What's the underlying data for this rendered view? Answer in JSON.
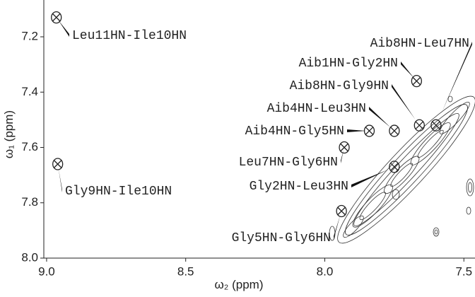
{
  "chart_data": {
    "type": "scatter",
    "xlabel": "ω₂ (ppm)",
    "ylabel": "ω₁ (ppm)",
    "x": [
      8.965,
      8.96,
      7.6,
      7.67,
      7.66,
      7.75,
      7.84,
      7.93,
      7.75,
      7.94
    ],
    "values": [
      7.13,
      7.66,
      7.52,
      7.36,
      7.52,
      7.54,
      7.54,
      7.6,
      7.67,
      7.83
    ],
    "labels": [
      "Leu11HN-Ile10HN",
      "Gly9HN-Ile10HN",
      "Aib8HN-Leu7HN",
      "Aib1HN-Gly2HN",
      "Aib8HN-Gly9HN",
      "Aib4HN-Leu3HN",
      "Aib4HN-Gly5HN",
      "Leu7HN-Gly6HN",
      "Gly2HN-Leu3HN",
      "Gly5HN-Gly6HN"
    ],
    "color": "#222222",
    "xlim": [
      9.01,
      7.46
    ],
    "ylim": [
      8.0,
      7.067
    ],
    "xticks": [
      {
        "value": 9,
        "label": "9.0"
      },
      8.5,
      {
        "value": 8,
        "label": "8.0"
      },
      7.5
    ],
    "yticks": [
      7.2,
      7.4,
      7.6,
      7.8,
      {
        "value": 8,
        "label": "8.0"
      }
    ]
  }
}
